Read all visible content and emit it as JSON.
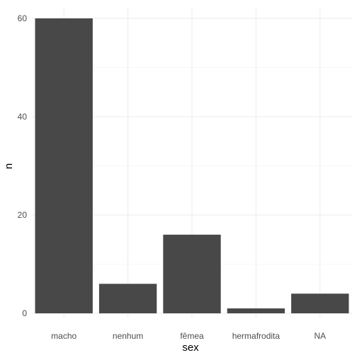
{
  "chart_data": {
    "type": "bar",
    "title": "",
    "xlabel": "sex",
    "ylabel": "n",
    "categories": [
      "macho",
      "nenhum",
      "fêmea",
      "hermafrodita",
      "NA"
    ],
    "values": [
      60,
      6,
      16,
      1,
      4
    ],
    "ylim": [
      0,
      63
    ],
    "yticks": [
      0,
      20,
      40,
      60
    ],
    "yminor": [
      10,
      30,
      50
    ],
    "grid": true,
    "legend": "none",
    "bar_color": "#484848",
    "grid_color": "#ebebeb",
    "tick_label_color": "#4d4d4d",
    "theme": "minimal"
  }
}
